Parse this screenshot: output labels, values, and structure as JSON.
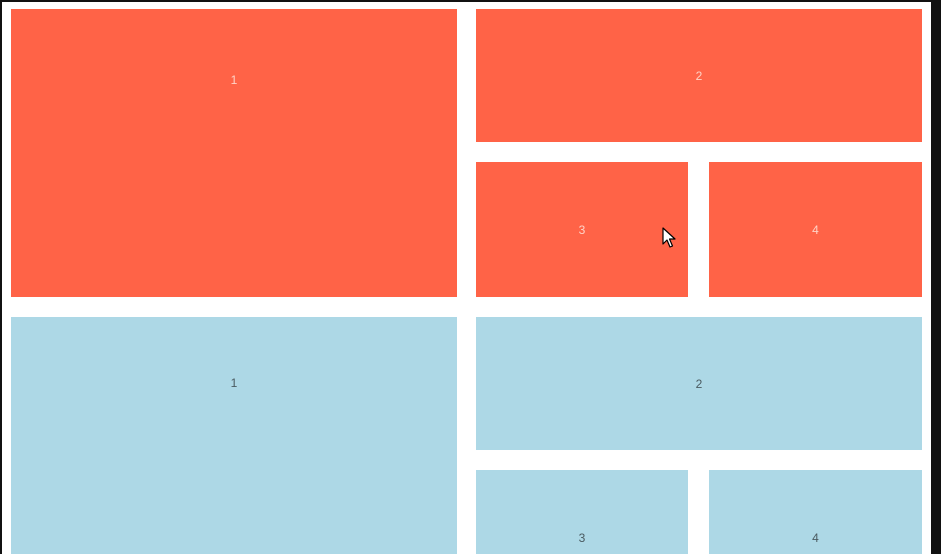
{
  "colors": {
    "red_tile": "#ff6347",
    "blue_tile": "#add8e6",
    "background": "#ffffff"
  },
  "red_grid": {
    "tiles": [
      {
        "label": "1"
      },
      {
        "label": "2"
      },
      {
        "label": "3"
      },
      {
        "label": "4"
      }
    ]
  },
  "blue_grid": {
    "tiles": [
      {
        "label": "1"
      },
      {
        "label": "2"
      },
      {
        "label": "3"
      },
      {
        "label": "4"
      }
    ]
  },
  "cursor": {
    "icon": "arrow-cursor-icon"
  }
}
